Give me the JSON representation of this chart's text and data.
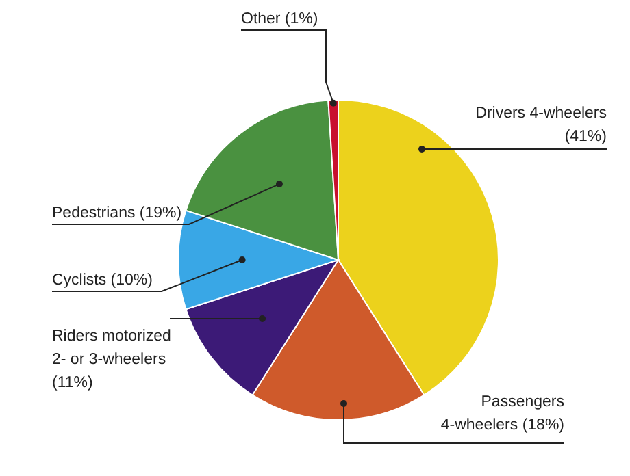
{
  "chart_data": {
    "type": "pie",
    "categories": [
      "Drivers 4-wheelers",
      "Passengers 4-wheelers",
      "Riders motorized 2- or 3-wheelers",
      "Cyclists",
      "Pedestrians",
      "Other"
    ],
    "values": [
      41,
      18,
      11,
      10,
      19,
      1
    ],
    "colors": [
      "#ecd21c",
      "#cf5a2b",
      "#3c1a77",
      "#39a7e6",
      "#4a9140",
      "#c8102e"
    ],
    "value_labels": [
      "(41%)",
      "(18%)",
      "(11%)",
      "(10%)",
      "(19%)",
      "(1%)"
    ]
  }
}
